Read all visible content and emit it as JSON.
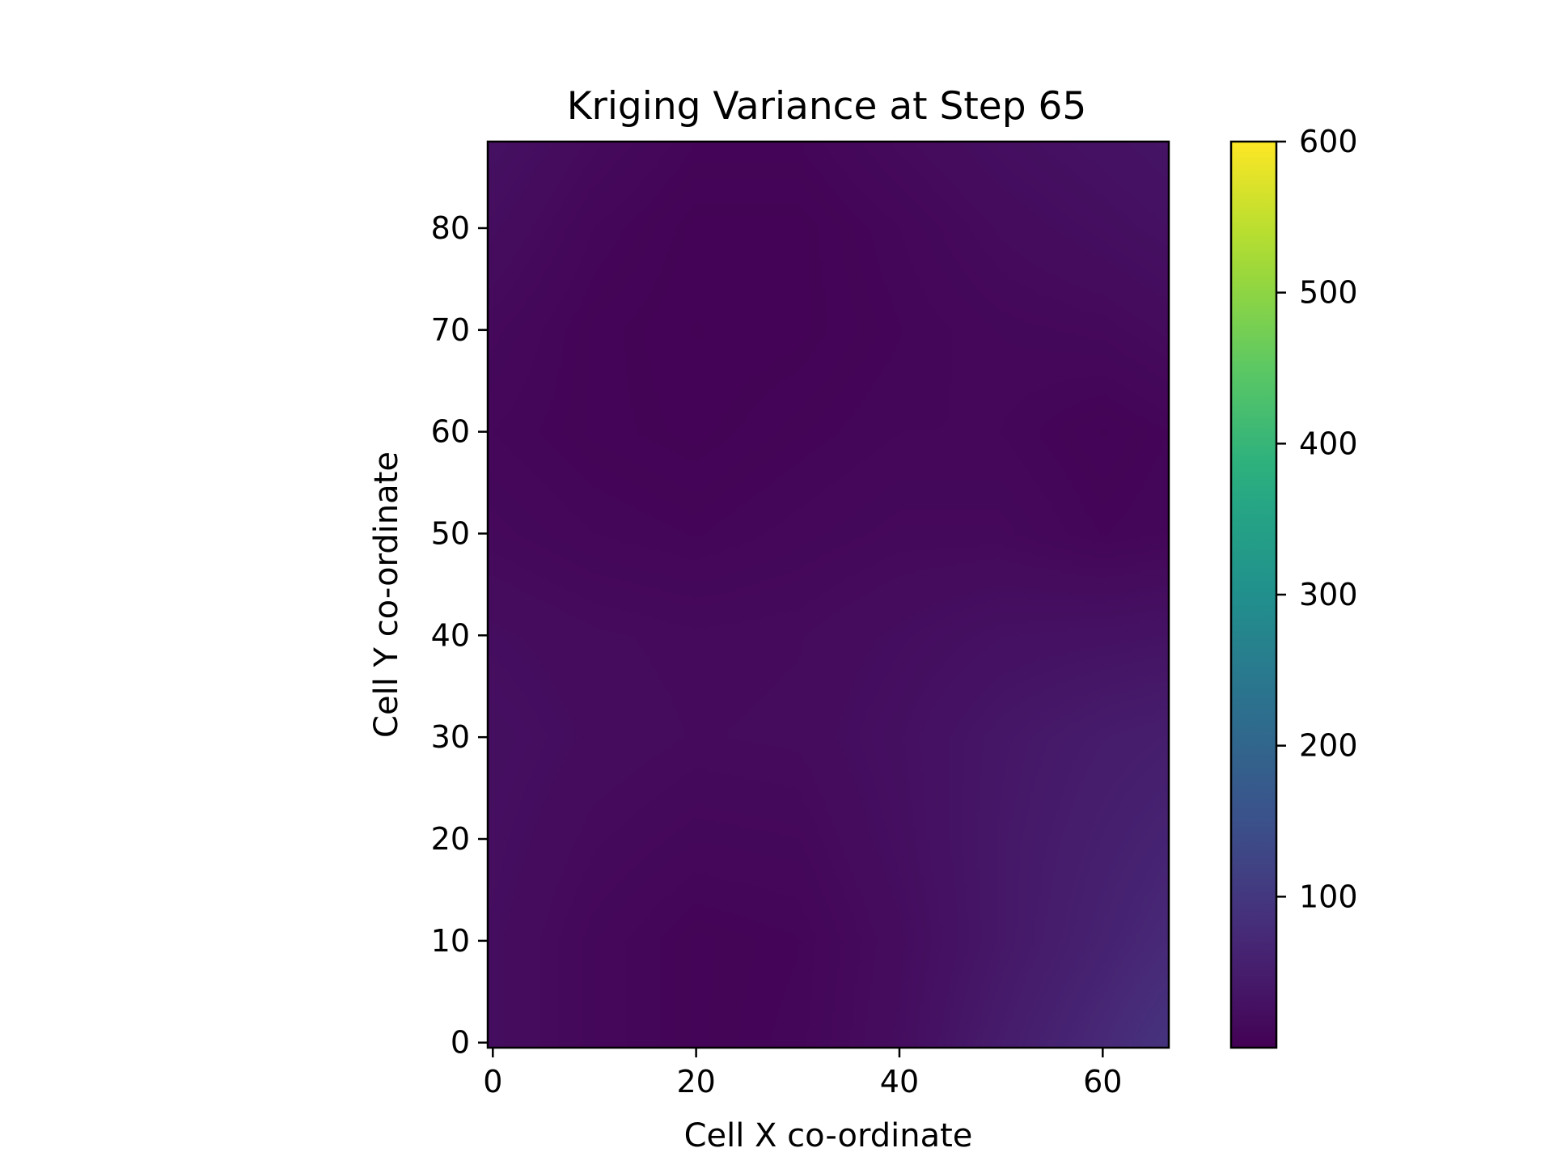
{
  "chart_data": {
    "type": "heatmap",
    "title": "Kriging Variance at Step 65",
    "xlabel": "Cell X co-ordinate",
    "ylabel": "Cell Y co-ordinate",
    "xlim": [
      -0.5,
      66.5
    ],
    "ylim": [
      -0.5,
      88.5
    ],
    "x_ticks": [
      0,
      20,
      40,
      60
    ],
    "y_ticks": [
      0,
      10,
      20,
      30,
      40,
      50,
      60,
      70,
      80
    ],
    "colorbar": {
      "colormap": "viridis",
      "range": [
        0,
        600
      ],
      "ticks": [
        100,
        200,
        300,
        400,
        500,
        600
      ]
    },
    "grid": false,
    "grid_x": [
      0,
      10,
      20,
      30,
      40,
      50,
      60,
      66
    ],
    "grid_y": [
      0,
      10,
      20,
      30,
      40,
      50,
      60,
      70,
      80,
      88
    ],
    "values": [
      [
        22,
        12,
        6,
        9,
        22,
        48,
        72,
        90
      ],
      [
        22,
        12,
        6,
        8,
        20,
        40,
        60,
        72
      ],
      [
        24,
        16,
        12,
        13,
        24,
        40,
        54,
        62
      ],
      [
        26,
        20,
        17,
        18,
        26,
        38,
        48,
        52
      ],
      [
        22,
        18,
        16,
        17,
        22,
        28,
        30,
        32
      ],
      [
        14,
        10,
        8,
        11,
        14,
        14,
        8,
        10
      ],
      [
        10,
        6,
        4,
        7,
        10,
        10,
        5,
        8
      ],
      [
        14,
        6,
        3,
        4,
        8,
        12,
        14,
        18
      ],
      [
        22,
        10,
        4,
        4,
        10,
        18,
        24,
        28
      ],
      [
        28,
        16,
        8,
        8,
        16,
        24,
        30,
        34
      ]
    ]
  }
}
